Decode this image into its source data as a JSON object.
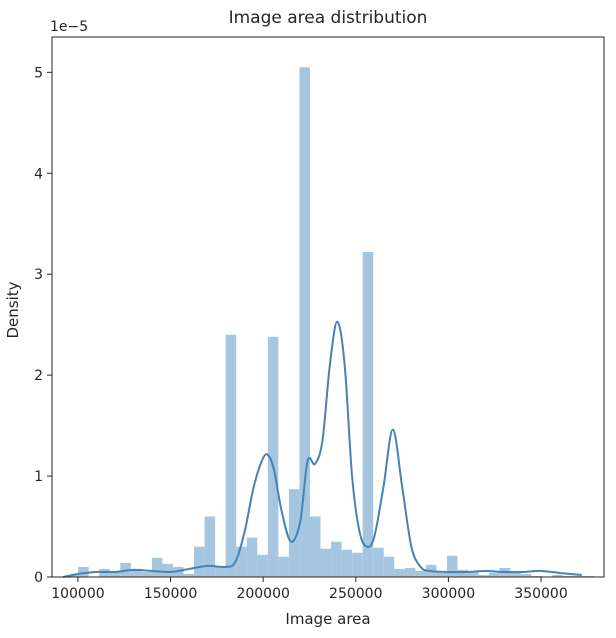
{
  "chart_data": {
    "type": "bar",
    "title": "Image area distribution",
    "xlabel": "Image area",
    "ylabel": "Density",
    "y_offset_text": "1e−5",
    "xlim": [
      86000,
      384000
    ],
    "ylim": [
      0,
      5.35
    ],
    "y_unit_multiplier": 1e-05,
    "grid": false,
    "x_ticks": [
      100000,
      150000,
      200000,
      250000,
      300000,
      350000
    ],
    "x_tick_labels": [
      "100000",
      "150000",
      "200000",
      "250000",
      "300000",
      "350000"
    ],
    "y_ticks": [
      0,
      1,
      2,
      3,
      4,
      5
    ],
    "y_tick_labels": [
      "0",
      "1",
      "2",
      "3",
      "4",
      "5"
    ],
    "histogram": {
      "bin_start": 94400,
      "bin_width": 5690,
      "color": "#a6c6e0",
      "values": [
        0.02,
        0.1,
        0.0,
        0.08,
        0.05,
        0.14,
        0.08,
        0.05,
        0.19,
        0.13,
        0.1,
        0.03,
        0.3,
        0.6,
        0.1,
        2.4,
        0.3,
        0.39,
        0.22,
        2.38,
        0.2,
        0.87,
        5.05,
        0.6,
        0.28,
        0.35,
        0.27,
        0.24,
        3.22,
        0.29,
        0.2,
        0.08,
        0.09,
        0.06,
        0.12,
        0.05,
        0.21,
        0.07,
        0.05,
        0.02,
        0.04,
        0.09,
        0.06,
        0.03,
        0.01,
        0.0,
        0.02,
        0.01,
        0.01,
        0.01
      ]
    },
    "kde": {
      "color": "#4682b4",
      "x": [
        92000,
        100000,
        110000,
        120000,
        130000,
        140000,
        150000,
        160000,
        170000,
        180000,
        185000,
        190000,
        195000,
        200000,
        203000,
        206000,
        210000,
        215000,
        220000,
        224000,
        228000,
        232000,
        236000,
        240000,
        244000,
        248000,
        252000,
        256000,
        260000,
        265000,
        270000,
        275000,
        280000,
        285000,
        290000,
        300000,
        310000,
        320000,
        330000,
        340000,
        350000,
        360000,
        372000
      ],
      "y": [
        0.0,
        0.03,
        0.05,
        0.05,
        0.07,
        0.06,
        0.05,
        0.08,
        0.11,
        0.1,
        0.15,
        0.45,
        0.9,
        1.18,
        1.2,
        1.05,
        0.65,
        0.35,
        0.55,
        1.15,
        1.12,
        1.35,
        2.1,
        2.53,
        2.1,
        1.0,
        0.45,
        0.3,
        0.4,
        0.9,
        1.46,
        0.9,
        0.3,
        0.1,
        0.06,
        0.05,
        0.05,
        0.06,
        0.05,
        0.05,
        0.06,
        0.04,
        0.02
      ]
    }
  }
}
